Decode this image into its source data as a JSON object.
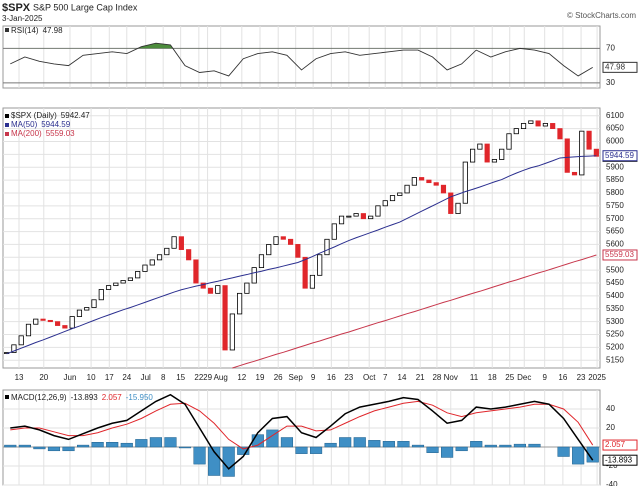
{
  "chart_data": [
    {
      "type": "line",
      "series": [
        {
          "name": "RSI(14)",
          "color": "#333333",
          "overbought_color": "#4c8c3c",
          "values": [
            52,
            60,
            55,
            52,
            50,
            62,
            64,
            66,
            64,
            72,
            76,
            74,
            50,
            42,
            44,
            38,
            58,
            64,
            66,
            62,
            45,
            58,
            64,
            66,
            62,
            64,
            66,
            68,
            68,
            60,
            45,
            52,
            68,
            60,
            66,
            70,
            68,
            64,
            50,
            38,
            47.98
          ]
        }
      ],
      "xlim": [
        -0.5,
        40.5
      ],
      "ylim": [
        24,
        96
      ],
      "yticks": [
        30,
        70
      ],
      "overbought": 70
    },
    {
      "type": "candlestick",
      "title": "$SPX",
      "subtitle": "S&P 500 Large Cap Index",
      "date": "3-Jan-2025",
      "credit": "© StockCharts.com",
      "series": [
        {
          "name": "$SPX (Daily)",
          "color": "#000000",
          "down_color": "#e0262b",
          "values": [
            5180,
            5210,
            5245,
            5290,
            5310,
            5305,
            5300,
            5285,
            5275,
            5320,
            5345,
            5355,
            5385,
            5425,
            5440,
            5450,
            5460,
            5470,
            5495,
            5520,
            5540,
            5560,
            5585,
            5630,
            5580,
            5540,
            5450,
            5430,
            5410,
            5440,
            5190,
            5330,
            5410,
            5450,
            5510,
            5560,
            5600,
            5630,
            5620,
            5600,
            5550,
            5430,
            5480,
            5560,
            5620,
            5680,
            5710,
            5710,
            5720,
            5700,
            5710,
            5750,
            5770,
            5790,
            5800,
            5830,
            5860,
            5850,
            5840,
            5830,
            5800,
            5720,
            5760,
            5920,
            5970,
            5990,
            5920,
            5930,
            5970,
            6030,
            6050,
            6070,
            6080,
            6060,
            6070,
            6050,
            6010,
            5880,
            5870,
            6040,
            5970,
            5942.47
          ]
        },
        {
          "name": "MA(50)",
          "color": "#2b2f8f",
          "values": [
            5175,
            5186,
            5197,
            5208,
            5219,
            5229,
            5240,
            5251,
            5262,
            5273,
            5283,
            5294,
            5305,
            5316,
            5326,
            5336,
            5346,
            5355,
            5365,
            5375,
            5385,
            5395,
            5405,
            5415,
            5424,
            5431,
            5438,
            5444,
            5451,
            5457,
            5464,
            5470,
            5477,
            5483,
            5490,
            5496,
            5503,
            5509,
            5516,
            5523,
            5530,
            5541,
            5553,
            5566,
            5578,
            5590,
            5603,
            5615,
            5626,
            5636,
            5646,
            5656,
            5667,
            5677,
            5687,
            5701,
            5715,
            5729,
            5743,
            5757,
            5771,
            5785,
            5795,
            5805,
            5814,
            5823,
            5833,
            5843,
            5852,
            5865,
            5877,
            5888,
            5898,
            5905,
            5915,
            5925,
            5936,
            5938,
            5940,
            5942,
            5943,
            5944.59
          ]
        },
        {
          "name": "MA(200)",
          "color": "#c7364b",
          "values": [
            null,
            null,
            null,
            null,
            null,
            null,
            null,
            null,
            null,
            null,
            null,
            null,
            null,
            null,
            null,
            null,
            null,
            null,
            null,
            null,
            null,
            null,
            null,
            null,
            null,
            null,
            null,
            null,
            null,
            null,
            null,
            5120,
            5129,
            5138,
            5146,
            5155,
            5164,
            5173,
            5181,
            5190,
            5199,
            5208,
            5217,
            5225,
            5234,
            5243,
            5252,
            5260,
            5269,
            5278,
            5287,
            5296,
            5304,
            5313,
            5322,
            5331,
            5339,
            5348,
            5357,
            5366,
            5375,
            5383,
            5392,
            5401,
            5410,
            5418,
            5427,
            5436,
            5445,
            5454,
            5462,
            5471,
            5480,
            5489,
            5497,
            5506,
            5515,
            5524,
            5533,
            5541,
            5550,
            5559.03
          ]
        }
      ],
      "xlim": [
        -0.5,
        81.5
      ],
      "ylim": [
        5120,
        6130
      ],
      "yticks": [
        5150,
        5200,
        5250,
        5300,
        5350,
        5400,
        5450,
        5500,
        5550,
        5600,
        5650,
        5700,
        5750,
        5800,
        5850,
        5900,
        5950,
        6000,
        6050,
        6100
      ],
      "xticks": [
        {
          "value": 1.7,
          "label": "13"
        },
        {
          "value": 5.1,
          "label": "20"
        },
        {
          "value": 8.7,
          "label": "Jun"
        },
        {
          "value": 11.6,
          "label": "10"
        },
        {
          "value": 14.1,
          "label": "17"
        },
        {
          "value": 16.5,
          "label": "24"
        },
        {
          "value": 19.1,
          "label": "Jul"
        },
        {
          "value": 21.5,
          "label": "8"
        },
        {
          "value": 23.9,
          "label": "15"
        },
        {
          "value": 26.4,
          "label": "22"
        },
        {
          "value": 27.6,
          "label": "29"
        },
        {
          "value": 29.4,
          "label": "Aug"
        },
        {
          "value": 32.3,
          "label": "12"
        },
        {
          "value": 34.8,
          "label": "19"
        },
        {
          "value": 37.3,
          "label": "26"
        },
        {
          "value": 39.7,
          "label": "Sep"
        },
        {
          "value": 42.1,
          "label": "9"
        },
        {
          "value": 44.6,
          "label": "16"
        },
        {
          "value": 47.0,
          "label": "23"
        },
        {
          "value": 49.8,
          "label": "Oct"
        },
        {
          "value": 52.0,
          "label": "7"
        },
        {
          "value": 54.3,
          "label": "14"
        },
        {
          "value": 56.8,
          "label": "21"
        },
        {
          "value": 59.1,
          "label": "28"
        },
        {
          "value": 61.0,
          "label": "Nov"
        },
        {
          "value": 64.2,
          "label": "11"
        },
        {
          "value": 66.7,
          "label": "18"
        },
        {
          "value": 69.1,
          "label": "25"
        },
        {
          "value": 71.1,
          "label": "Dec"
        },
        {
          "value": 73.9,
          "label": "9"
        },
        {
          "value": 76.4,
          "label": "16"
        },
        {
          "value": 78.9,
          "label": "23"
        },
        {
          "value": 81.1,
          "label": "2025"
        }
      ]
    },
    {
      "type": "macd",
      "series": [
        {
          "name": "MACD(12,26,9)",
          "color": "#000000",
          "values": [
            20,
            22,
            18,
            12,
            8,
            14,
            20,
            25,
            28,
            38,
            48,
            55,
            45,
            20,
            -5,
            -23,
            -10,
            15,
            30,
            32,
            15,
            10,
            22,
            35,
            42,
            45,
            48,
            52,
            50,
            38,
            25,
            28,
            42,
            40,
            42,
            45,
            48,
            45,
            30,
            8,
            -13.893
          ]
        },
        {
          "color": "#e0262b",
          "values": [
            18,
            20,
            20,
            16,
            12,
            12,
            15,
            20,
            24,
            30,
            38,
            45,
            46,
            38,
            25,
            8,
            -2,
            2,
            12,
            22,
            22,
            17,
            18,
            25,
            32,
            38,
            42,
            46,
            48,
            44,
            36,
            32,
            36,
            38,
            40,
            42,
            45,
            45,
            40,
            26,
            2.057
          ]
        },
        {
          "color": "#3f8fc5",
          "values": [
            2,
            2,
            -2,
            -4,
            -4,
            2,
            5,
            5,
            4,
            8,
            10,
            10,
            -1,
            -18,
            -30,
            -31,
            -8,
            13,
            18,
            10,
            -7,
            -7,
            4,
            10,
            10,
            7,
            6,
            6,
            2,
            -6,
            -11,
            -4,
            6,
            2,
            2,
            3,
            3,
            0,
            -10,
            -18,
            -15.95
          ],
          "value_labels": [
            null,
            null,
            null,
            null,
            null,
            null,
            null,
            null,
            null,
            null,
            null,
            null,
            null,
            null,
            null,
            null,
            null,
            null,
            null,
            null,
            null,
            null,
            null,
            null,
            null,
            null,
            null,
            null,
            null,
            null,
            null,
            null,
            null,
            null,
            null,
            null,
            null,
            null,
            null,
            null,
            "-15.950"
          ]
        }
      ],
      "xlim": [
        -0.5,
        40.5
      ],
      "ylim": [
        -40,
        60
      ],
      "yticks": [
        -40,
        -20,
        20,
        40
      ]
    }
  ]
}
